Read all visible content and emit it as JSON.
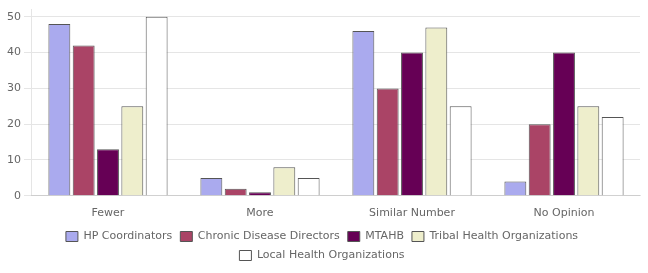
{
  "chart_data": {
    "type": "bar",
    "categories": [
      "Fewer",
      "More",
      "Similar Number",
      "No Opinion"
    ],
    "series": [
      {
        "name": "HP Coordinators",
        "color": "#aaaaee",
        "values": [
          48,
          5,
          46,
          4
        ]
      },
      {
        "name": "Chronic Disease Directors",
        "color": "#aa4466",
        "values": [
          42,
          2,
          30,
          20
        ]
      },
      {
        "name": "MTAHB",
        "color": "#660055",
        "values": [
          13,
          1,
          40,
          40
        ]
      },
      {
        "name": "Tribal Health Organizations",
        "color": "#eeeecc",
        "values": [
          25,
          8,
          47,
          25
        ]
      },
      {
        "name": "Local Health Organizations",
        "color": "#ffffff",
        "values": [
          50,
          5,
          25,
          22
        ]
      }
    ],
    "ylim": [
      0,
      52
    ],
    "yticks": [
      0,
      10,
      20,
      30,
      40,
      50
    ],
    "grid": true,
    "legend": "bottom"
  }
}
